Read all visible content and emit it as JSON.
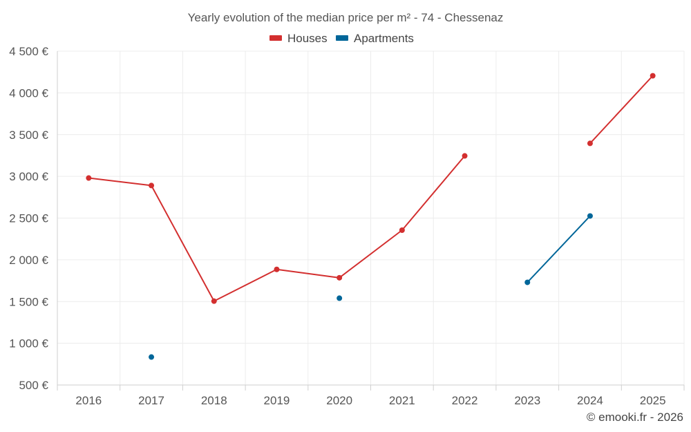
{
  "chart_data": {
    "type": "line",
    "title": "Yearly evolution of the median price per m² - 74 - Chessenaz",
    "categories": [
      "2016",
      "2017",
      "2018",
      "2019",
      "2020",
      "2021",
      "2022",
      "2023",
      "2024",
      "2025"
    ],
    "series": [
      {
        "name": "Houses",
        "color": "#d32f2f",
        "values": [
          2980,
          2890,
          1505,
          1885,
          1785,
          2355,
          3245,
          null,
          3395,
          4205
        ]
      },
      {
        "name": "Apartments",
        "color": "#006699",
        "values": [
          null,
          835,
          null,
          null,
          1540,
          null,
          null,
          1730,
          2525,
          null
        ]
      }
    ],
    "yaxis": {
      "min": 500,
      "max": 4500,
      "ticks": [
        {
          "value": 4500,
          "label": "4 500 €"
        },
        {
          "value": 4000,
          "label": "4 000 €"
        },
        {
          "value": 3500,
          "label": "3 500 €"
        },
        {
          "value": 3000,
          "label": "3 000 €"
        },
        {
          "value": 2500,
          "label": "2 500 €"
        },
        {
          "value": 2000,
          "label": "2 000 €"
        },
        {
          "value": 1500,
          "label": "1 500 €"
        },
        {
          "value": 1000,
          "label": "1 000 €"
        },
        {
          "value": 500,
          "label": "500 €"
        }
      ]
    },
    "xlabel": "",
    "ylabel": "",
    "grid": true,
    "legend_position": "top-center"
  },
  "credit": "© emooki.fr - 2026"
}
